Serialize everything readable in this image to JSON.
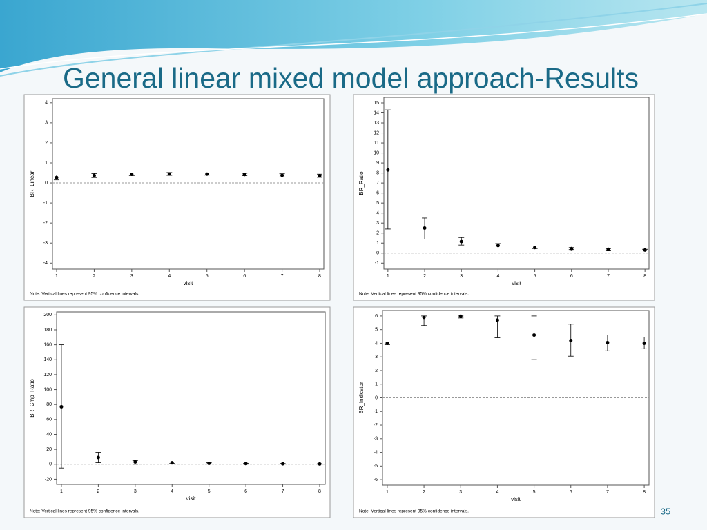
{
  "slide": {
    "title": "General linear mixed model approach-Results",
    "page_number": "35"
  },
  "chart_data": [
    {
      "type": "errorbar",
      "y_label": "BR_Linear",
      "x_label": "visit",
      "note": "Note: Vertical lines represent 95% confidence intervals.",
      "x": [
        1,
        2,
        3,
        4,
        5,
        6,
        7,
        8
      ],
      "xlim": [
        0.89,
        8.11
      ],
      "xticks": [
        1,
        2,
        3,
        4,
        5,
        6,
        7,
        8
      ],
      "ylim": [
        -4.3,
        4.2
      ],
      "yticks": [
        -4,
        -3,
        -2,
        -1,
        0,
        1,
        2,
        3,
        4
      ],
      "reference_line": 0,
      "series": [
        {
          "color": "#000000",
          "values": [
            0.27,
            0.37,
            0.43,
            0.45,
            0.44,
            0.42,
            0.38,
            0.36
          ],
          "lower": [
            0.15,
            0.27,
            0.37,
            0.38,
            0.39,
            0.36,
            0.3,
            0.28
          ],
          "upper": [
            0.4,
            0.47,
            0.5,
            0.52,
            0.5,
            0.48,
            0.46,
            0.44
          ]
        }
      ]
    },
    {
      "type": "errorbar",
      "y_label": "BR_Ratio",
      "x_label": "visit",
      "note": "Note: Vertical lines represent 95% confidence intervals.",
      "x": [
        1,
        2,
        3,
        4,
        5,
        6,
        7,
        8
      ],
      "xlim": [
        0.89,
        8.11
      ],
      "xticks": [
        1,
        2,
        3,
        4,
        5,
        6,
        7,
        8
      ],
      "ylim": [
        -1.6,
        15.55
      ],
      "yticks": [
        -1,
        0,
        1,
        2,
        3,
        4,
        5,
        6,
        7,
        8,
        9,
        10,
        11,
        12,
        13,
        14,
        15
      ],
      "reference_line": 0,
      "series": [
        {
          "color": "#000000",
          "values": [
            8.3,
            2.5,
            1.15,
            0.75,
            0.55,
            0.45,
            0.38,
            0.3
          ],
          "lower": [
            2.4,
            1.4,
            0.8,
            0.5,
            0.45,
            0.35,
            0.3,
            0.22
          ],
          "upper": [
            14.3,
            3.5,
            1.55,
            0.95,
            0.7,
            0.55,
            0.45,
            0.38
          ]
        }
      ]
    },
    {
      "type": "errorbar",
      "y_label": "BR_Cmp_Ratio",
      "x_label": "visit",
      "note": "Note: Vertical lines represent 95% confidence intervals.",
      "x": [
        1,
        2,
        3,
        4,
        5,
        6,
        7,
        8
      ],
      "xlim": [
        0.87,
        8.15
      ],
      "xticks": [
        1,
        2,
        3,
        4,
        5,
        6,
        7,
        8
      ],
      "ylim": [
        -27,
        204
      ],
      "yticks": [
        -20,
        0,
        20,
        40,
        60,
        80,
        100,
        120,
        140,
        160,
        180,
        200
      ],
      "reference_line": 0,
      "series": [
        {
          "color": "#000000",
          "values": [
            77,
            9,
            3,
            2,
            1.2,
            0.8,
            0.6,
            0.4
          ],
          "lower": [
            -5,
            2,
            0,
            1,
            0.5,
            0.3,
            0.2,
            0.1
          ],
          "upper": [
            160,
            16,
            5,
            3,
            2,
            1.3,
            1,
            0.7
          ]
        }
      ]
    },
    {
      "type": "errorbar",
      "y_label": "BR_Indicator",
      "x_label": "visit",
      "note": "Note: Vertical lines represent 95% confidence intervals.",
      "x": [
        1,
        2,
        3,
        4,
        5,
        6,
        7,
        8
      ],
      "xlim": [
        0.87,
        8.13
      ],
      "xticks": [
        1,
        2,
        3,
        4,
        5,
        6,
        7,
        8
      ],
      "ylim": [
        -6.4,
        6.4
      ],
      "yticks": [
        -6,
        -5,
        -4,
        -3,
        -2,
        -1,
        0,
        1,
        2,
        3,
        4,
        5,
        6
      ],
      "reference_line": 0,
      "series": [
        {
          "color": "#000000",
          "values": [
            4.0,
            5.9,
            5.98,
            5.7,
            4.6,
            4.2,
            4.05,
            4.0
          ],
          "lower": [
            3.9,
            5.3,
            5.85,
            4.4,
            2.8,
            3.05,
            3.45,
            3.6
          ],
          "upper": [
            4.1,
            6.0,
            6.0,
            6.0,
            6.0,
            5.4,
            4.6,
            4.45
          ]
        }
      ]
    }
  ]
}
